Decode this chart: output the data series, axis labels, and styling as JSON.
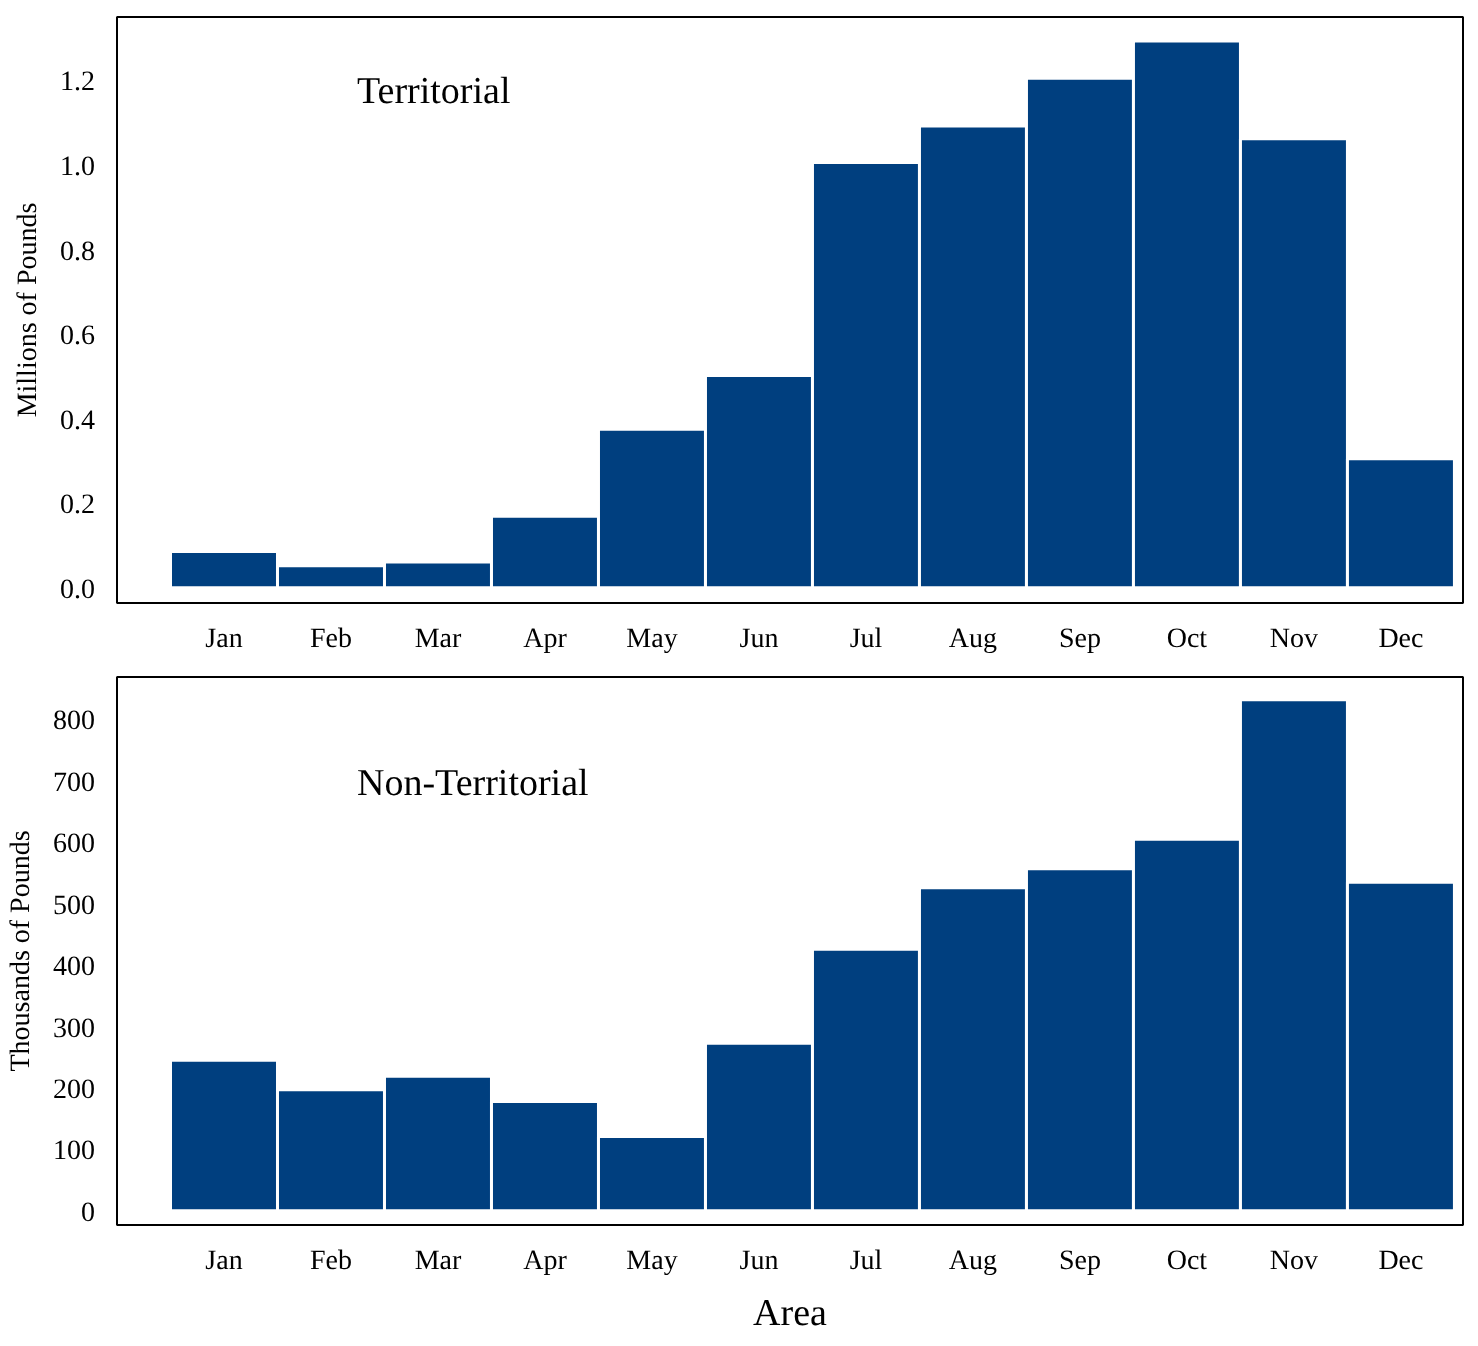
{
  "chart_data": [
    {
      "type": "bar",
      "title": "Territorial",
      "ylabel": "Millions of Pounds",
      "categories": [
        "Jan",
        "Feb",
        "Mar",
        "Apr",
        "May",
        "Jun",
        "Jul",
        "Aug",
        "Sep",
        "Oct",
        "Nov",
        "Dec"
      ],
      "series": [
        {
          "color": "#003f7f",
          "values": [
            0.086,
            0.052,
            0.061,
            0.169,
            0.375,
            0.502,
            1.006,
            1.092,
            1.205,
            1.293,
            1.062,
            0.305
          ]
        }
      ],
      "ylim": [
        -0.036,
        1.35
      ],
      "yticks": [
        {
          "value": 0,
          "label": "0.0"
        },
        0.2,
        0.4,
        0.6,
        0.8,
        {
          "value": 1,
          "label": "1.0"
        },
        1.2
      ],
      "grid": false
    },
    {
      "type": "bar",
      "title": "Non-Territorial",
      "ylabel": "Thousands of Pounds",
      "xlabel": "Area",
      "categories": [
        "Jan",
        "Feb",
        "Mar",
        "Apr",
        "May",
        "Jun",
        "Jul",
        "Aug",
        "Sep",
        "Oct",
        "Nov",
        "Dec"
      ],
      "series": [
        {
          "color": "#003f7f",
          "values": [
            245,
            197,
            219,
            178,
            121,
            273,
            426,
            526,
            557,
            605,
            832,
            535
          ]
        }
      ],
      "ylim": [
        -23,
        869
      ],
      "yticks": [
        0,
        100,
        200,
        300,
        400,
        500,
        600,
        700,
        800
      ],
      "grid": false
    }
  ]
}
